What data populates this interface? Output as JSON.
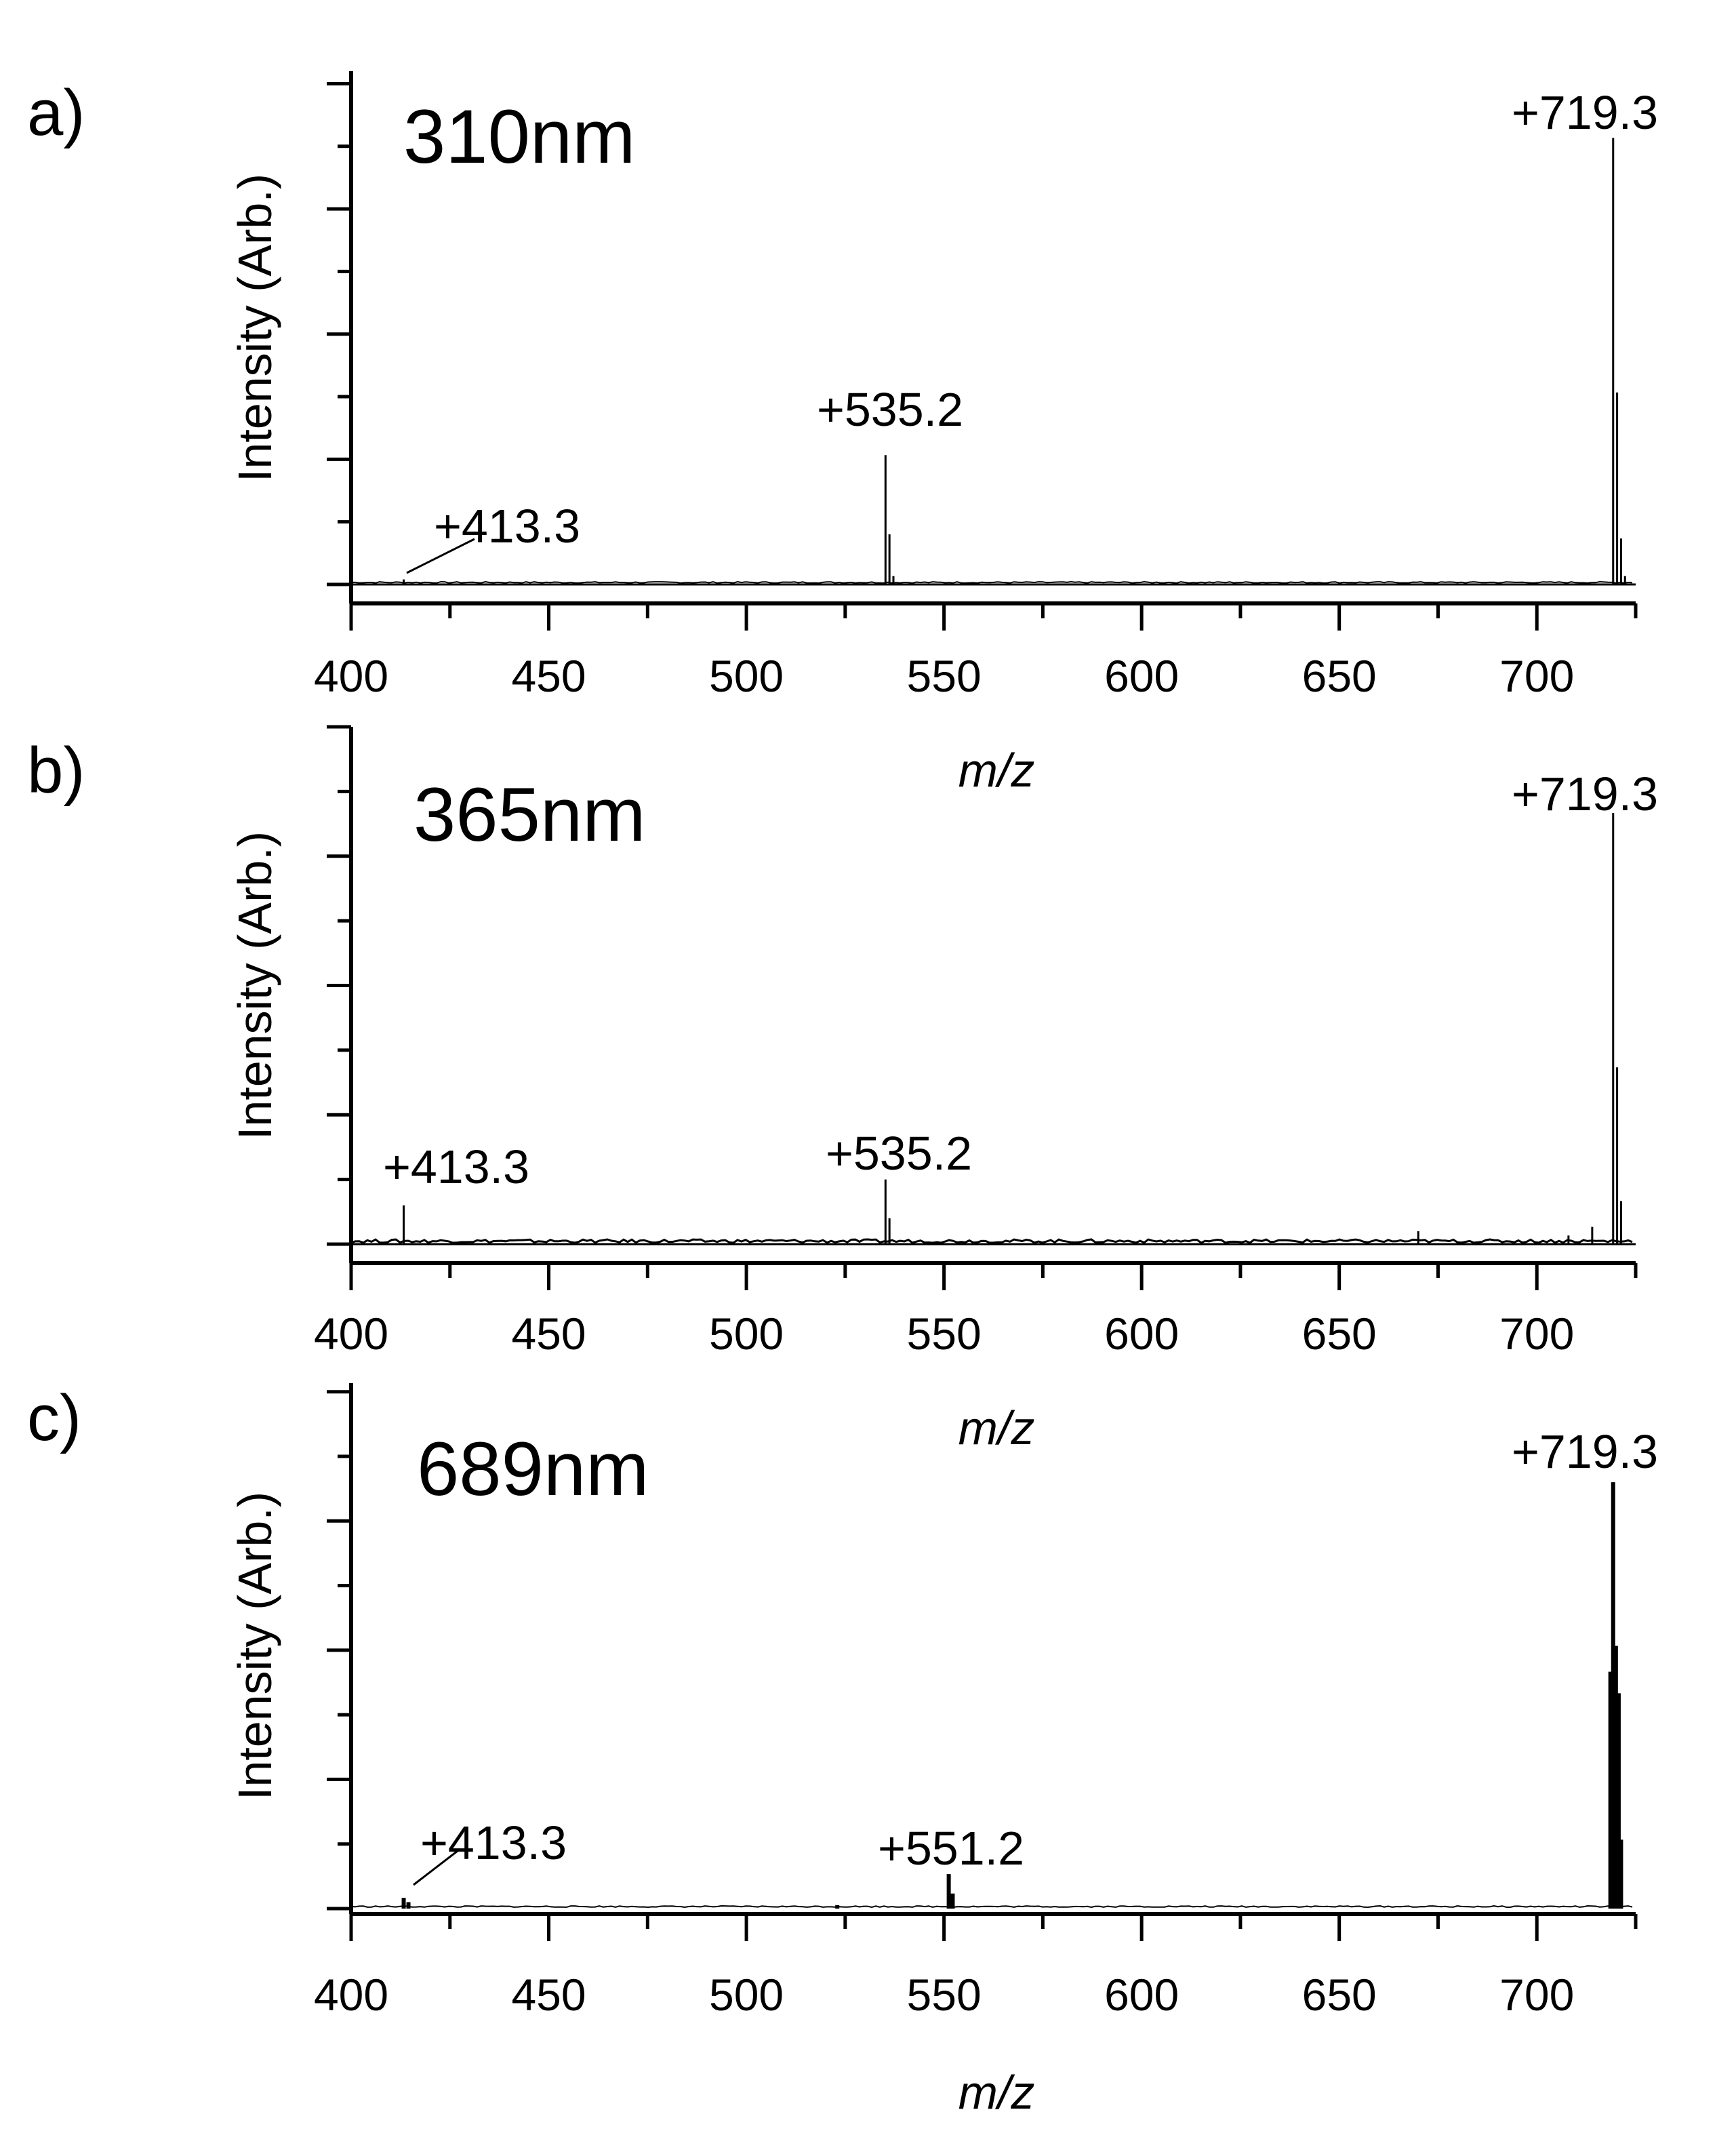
{
  "chart_data": [
    {
      "panel_label": "a)",
      "type": "line",
      "subtitle": "310nm",
      "xlabel": "m/z",
      "ylabel": "Intensity (Arb.)",
      "xlim": [
        400,
        725
      ],
      "ylim": [
        0,
        1.23
      ],
      "xticks": [
        400,
        450,
        500,
        550,
        600,
        650,
        700
      ],
      "ytick_labels_shown": false,
      "peaks": [
        {
          "x": 413.3,
          "y": 0.012
        },
        {
          "x": 535.2,
          "y": 0.31
        },
        {
          "x": 536.2,
          "y": 0.12
        },
        {
          "x": 537.2,
          "y": 0.02
        },
        {
          "x": 719.3,
          "y": 1.07
        },
        {
          "x": 720.3,
          "y": 0.46
        },
        {
          "x": 721.3,
          "y": 0.11
        },
        {
          "x": 722.3,
          "y": 0.02
        }
      ],
      "annotations": [
        {
          "text": "+413.3",
          "x": 413.3
        },
        {
          "text": "+535.2",
          "x": 535.2
        },
        {
          "text": "+719.3",
          "x": 719.3
        }
      ]
    },
    {
      "panel_label": "b)",
      "type": "line",
      "subtitle": "365nm",
      "xlabel": "m/z",
      "ylabel": "Intensity (Arb.)",
      "xlim": [
        400,
        725
      ],
      "ylim": [
        0,
        1.2
      ],
      "xticks": [
        400,
        450,
        500,
        550,
        600,
        650,
        700
      ],
      "ytick_labels_shown": false,
      "peaks": [
        {
          "x": 413.3,
          "y": 0.09
        },
        {
          "x": 535.2,
          "y": 0.15
        },
        {
          "x": 536.2,
          "y": 0.06
        },
        {
          "x": 670.0,
          "y": 0.03
        },
        {
          "x": 708.0,
          "y": 0.02
        },
        {
          "x": 714.0,
          "y": 0.04
        },
        {
          "x": 719.3,
          "y": 1.0
        },
        {
          "x": 720.3,
          "y": 0.41
        },
        {
          "x": 721.3,
          "y": 0.1
        }
      ],
      "annotations": [
        {
          "text": "+413.3",
          "x": 413.3
        },
        {
          "text": "+535.2",
          "x": 535.2
        },
        {
          "text": "+719.3",
          "x": 719.3
        }
      ]
    },
    {
      "panel_label": "c)",
      "type": "line",
      "subtitle": "689nm",
      "xlabel": "m/z",
      "ylabel": "Intensity (Arb.)",
      "xlim": [
        400,
        725
      ],
      "ylim": [
        0,
        1.22
      ],
      "xticks": [
        400,
        450,
        500,
        550,
        600,
        650,
        700
      ],
      "ytick_labels_shown": false,
      "peaks": [
        {
          "x": 413.3,
          "y": 0.025
        },
        {
          "x": 414.5,
          "y": 0.015
        },
        {
          "x": 523.0,
          "y": 0.008
        },
        {
          "x": 551.2,
          "y": 0.08
        },
        {
          "x": 552.2,
          "y": 0.035
        },
        {
          "x": 718.6,
          "y": 0.55
        },
        {
          "x": 719.3,
          "y": 0.99
        },
        {
          "x": 720.0,
          "y": 0.61
        },
        {
          "x": 720.7,
          "y": 0.5
        },
        {
          "x": 721.3,
          "y": 0.16
        }
      ],
      "annotations": [
        {
          "text": "+413.3",
          "x": 413.3
        },
        {
          "text": "+551.2",
          "x": 551.2
        },
        {
          "text": "+719.3",
          "x": 719.3
        }
      ]
    }
  ]
}
